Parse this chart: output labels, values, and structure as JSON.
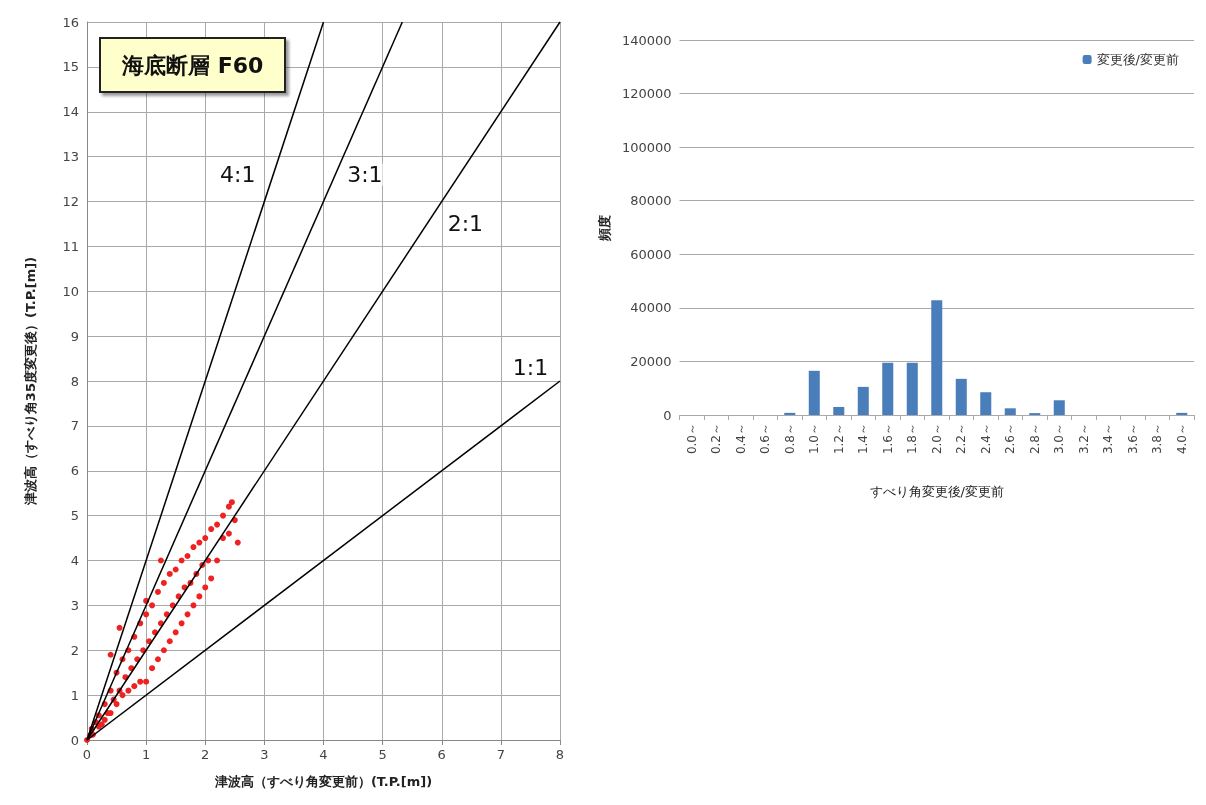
{
  "chart_data": [
    {
      "type": "scatter",
      "title": "海底断層 F60",
      "xlabel": "津波高（すべり角変更前）(T.P.[m])",
      "ylabel": "津波高（すべり角35度変更後）(T.P.[m])",
      "xlim": [
        0,
        8
      ],
      "xticks": [
        0,
        1,
        2,
        3,
        4,
        5,
        6,
        7,
        8
      ],
      "ylim": [
        0,
        16
      ],
      "yticks": [
        0,
        1,
        2,
        3,
        4,
        5,
        6,
        7,
        8,
        9,
        10,
        11,
        12,
        13,
        14,
        15,
        16
      ],
      "grid": true,
      "legend": false,
      "marker": "circle",
      "series": [
        {
          "type": "scatter",
          "color": "#ee2222",
          "x": [
            0,
            0.05,
            0.08,
            0.1,
            0.15,
            0.2,
            0.2,
            0.25,
            0.3,
            0.3,
            0.35,
            0.4,
            0.4,
            0.45,
            0.5,
            0.5,
            0.55,
            0.6,
            0.6,
            0.65,
            0.7,
            0.7,
            0.75,
            0.8,
            0.8,
            0.85,
            0.9,
            0.9,
            0.95,
            1.0,
            1.0,
            1.05,
            1.1,
            1.1,
            1.15,
            1.2,
            1.2,
            1.25,
            1.3,
            1.3,
            1.35,
            1.4,
            1.4,
            1.45,
            1.5,
            1.5,
            1.55,
            1.6,
            1.6,
            1.65,
            1.7,
            1.7,
            1.75,
            1.8,
            1.8,
            1.85,
            1.9,
            1.9,
            1.95,
            2.0,
            2.0,
            2.05,
            2.1,
            2.1,
            2.2,
            2.2,
            2.3,
            2.3,
            2.4,
            2.4,
            2.5,
            2.55,
            1.25,
            0.55,
            0.4,
            1.0,
            2.45
          ],
          "values": [
            0,
            0.1,
            0.25,
            0.12,
            0.4,
            0.3,
            0.55,
            0.35,
            0.8,
            0.45,
            0.6,
            1.1,
            0.6,
            0.9,
            1.5,
            0.8,
            1.1,
            1.8,
            1.0,
            1.4,
            2.0,
            1.1,
            1.6,
            2.3,
            1.2,
            1.8,
            2.6,
            1.3,
            2.0,
            2.8,
            1.3,
            2.2,
            3.0,
            1.6,
            2.4,
            3.3,
            1.8,
            2.6,
            3.5,
            2.0,
            2.8,
            3.7,
            2.2,
            3.0,
            3.8,
            2.4,
            3.2,
            4.0,
            2.6,
            3.4,
            4.1,
            2.8,
            3.5,
            4.3,
            3.0,
            3.7,
            4.4,
            3.2,
            3.9,
            4.5,
            3.4,
            4.0,
            4.7,
            3.6,
            4.8,
            4.0,
            5.0,
            4.5,
            5.2,
            4.6,
            4.9,
            4.4,
            4.0,
            2.5,
            1.9,
            3.1,
            5.3
          ]
        },
        {
          "type": "line",
          "color": "#000000",
          "marker": "none",
          "x": [
            0,
            4
          ],
          "values": [
            0,
            16
          ]
        },
        {
          "type": "line",
          "color": "#000000",
          "marker": "none",
          "x": [
            0,
            5.333
          ],
          "values": [
            0,
            16
          ]
        },
        {
          "type": "line",
          "color": "#000000",
          "marker": "none",
          "x": [
            0,
            8
          ],
          "values": [
            0,
            16
          ]
        },
        {
          "type": "line",
          "color": "#000000",
          "marker": "none",
          "x": [
            0,
            8
          ],
          "values": [
            0,
            8
          ]
        }
      ],
      "annotations": [
        {
          "text": "4:1",
          "x": 2.55,
          "y": 12.6
        },
        {
          "text": "3:1",
          "x": 4.7,
          "y": 12.6
        },
        {
          "text": "2:1",
          "x": 6.4,
          "y": 11.5
        },
        {
          "text": "1:1",
          "x": 7.5,
          "y": 8.3
        }
      ]
    },
    {
      "type": "bar",
      "xlabel": "すべり角変更後/変更前",
      "ylabel": "頻度",
      "categories": [
        "0.0～",
        "0.2～",
        "0.4～",
        "0.6～",
        "0.8～",
        "1.0～",
        "1.2～",
        "1.4～",
        "1.6～",
        "1.8～",
        "2.0～",
        "2.2～",
        "2.4～",
        "2.6～",
        "2.8～",
        "3.0～",
        "3.2～",
        "3.4～",
        "3.6～",
        "3.8～",
        "4.0～"
      ],
      "ylim": [
        0,
        140000
      ],
      "yticks": [
        0,
        20000,
        40000,
        60000,
        80000,
        100000,
        120000,
        140000
      ],
      "grid": "y",
      "legend": "top right",
      "series": [
        {
          "name": "変更後/変更前",
          "color": "#4a7ebb",
          "values": [
            0,
            0,
            0,
            0,
            800,
            16500,
            3000,
            10500,
            19500,
            19500,
            42800,
            13500,
            8500,
            2500,
            700,
            5500,
            0,
            0,
            0,
            0,
            800
          ]
        }
      ]
    }
  ]
}
